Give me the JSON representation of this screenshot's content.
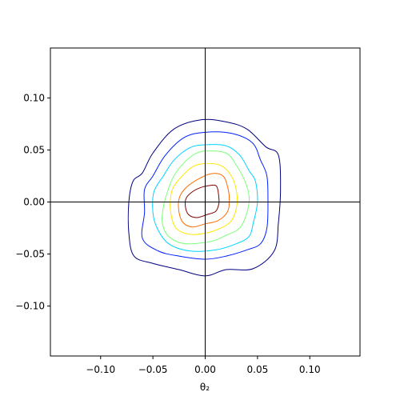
{
  "chart_data": {
    "type": "contour",
    "title": "",
    "xlabel": "θ₂",
    "ylabel": "",
    "xlim": [
      -0.148,
      0.148
    ],
    "ylim": [
      -0.148,
      0.148
    ],
    "x_ticks": [
      -0.1,
      -0.05,
      0.0,
      0.05,
      0.1
    ],
    "y_ticks": [
      -0.1,
      -0.05,
      0.0,
      0.05,
      0.1
    ],
    "x_tick_labels": [
      "−0.10",
      "−0.05",
      "0.00",
      "0.05",
      "0.10"
    ],
    "y_tick_labels": [
      "−0.10",
      "−0.05",
      "0.00",
      "0.05",
      "0.10"
    ],
    "reference_lines": {
      "x": 0,
      "y": 0
    },
    "grid": false,
    "colormap": "jet",
    "contours": [
      {
        "level": 1,
        "color": "#00007f",
        "points": [
          [
            -0.004,
            0.079
          ],
          [
            0.02,
            0.077
          ],
          [
            0.04,
            0.07
          ],
          [
            0.058,
            0.053
          ],
          [
            0.07,
            0.045
          ],
          [
            0.072,
            0.012
          ],
          [
            0.07,
            -0.02
          ],
          [
            0.066,
            -0.047
          ],
          [
            0.046,
            -0.064
          ],
          [
            0.02,
            -0.065
          ],
          [
            0.0,
            -0.071
          ],
          [
            -0.025,
            -0.065
          ],
          [
            -0.05,
            -0.059
          ],
          [
            -0.068,
            -0.052
          ],
          [
            -0.073,
            -0.03
          ],
          [
            -0.073,
            0.0
          ],
          [
            -0.069,
            0.02
          ],
          [
            -0.06,
            0.028
          ],
          [
            -0.05,
            0.047
          ],
          [
            -0.03,
            0.07
          ]
        ]
      },
      {
        "level": 2,
        "color": "#0022ff",
        "points": [
          [
            0.0,
            0.067
          ],
          [
            0.025,
            0.066
          ],
          [
            0.045,
            0.057
          ],
          [
            0.053,
            0.04
          ],
          [
            0.059,
            0.025
          ],
          [
            0.06,
            0.0
          ],
          [
            0.059,
            -0.025
          ],
          [
            0.053,
            -0.04
          ],
          [
            0.04,
            -0.046
          ],
          [
            0.02,
            -0.052
          ],
          [
            0.0,
            -0.055
          ],
          [
            -0.025,
            -0.052
          ],
          [
            -0.045,
            -0.047
          ],
          [
            -0.06,
            -0.035
          ],
          [
            -0.058,
            -0.01
          ],
          [
            -0.058,
            0.012
          ],
          [
            -0.05,
            0.025
          ],
          [
            -0.038,
            0.045
          ],
          [
            -0.02,
            0.062
          ]
        ]
      },
      {
        "level": 3,
        "color": "#00d4ff",
        "points": [
          [
            0.0,
            0.055
          ],
          [
            0.02,
            0.054
          ],
          [
            0.033,
            0.045
          ],
          [
            0.042,
            0.03
          ],
          [
            0.048,
            0.02
          ],
          [
            0.05,
            0.0
          ],
          [
            0.046,
            -0.02
          ],
          [
            0.042,
            -0.033
          ],
          [
            0.03,
            -0.04
          ],
          [
            0.01,
            -0.046
          ],
          [
            -0.015,
            -0.047
          ],
          [
            -0.035,
            -0.04
          ],
          [
            -0.046,
            -0.025
          ],
          [
            -0.05,
            -0.01
          ],
          [
            -0.049,
            0.01
          ],
          [
            -0.04,
            0.025
          ],
          [
            -0.03,
            0.04
          ],
          [
            -0.015,
            0.052
          ]
        ]
      },
      {
        "level": 4,
        "color": "#7cff79",
        "points": [
          [
            0.0,
            0.049
          ],
          [
            0.02,
            0.047
          ],
          [
            0.03,
            0.035
          ],
          [
            0.038,
            0.02
          ],
          [
            0.042,
            0.005
          ],
          [
            0.04,
            -0.01
          ],
          [
            0.033,
            -0.025
          ],
          [
            0.02,
            -0.032
          ],
          [
            0.005,
            -0.038
          ],
          [
            -0.02,
            -0.04
          ],
          [
            -0.035,
            -0.033
          ],
          [
            -0.041,
            -0.02
          ],
          [
            -0.04,
            -0.005
          ],
          [
            -0.036,
            0.01
          ],
          [
            -0.03,
            0.025
          ],
          [
            -0.02,
            0.038
          ],
          [
            -0.01,
            0.046
          ]
        ]
      },
      {
        "level": 5,
        "color": "#ffe600",
        "points": [
          [
            0.0,
            0.037
          ],
          [
            0.015,
            0.035
          ],
          [
            0.025,
            0.025
          ],
          [
            0.03,
            0.01
          ],
          [
            0.03,
            -0.005
          ],
          [
            0.025,
            -0.018
          ],
          [
            0.015,
            -0.025
          ],
          [
            0.0,
            -0.03
          ],
          [
            -0.015,
            -0.031
          ],
          [
            -0.028,
            -0.025
          ],
          [
            -0.033,
            -0.01
          ],
          [
            -0.033,
            0.005
          ],
          [
            -0.03,
            0.015
          ],
          [
            -0.022,
            0.025
          ],
          [
            -0.012,
            0.034
          ]
        ]
      },
      {
        "level": 6,
        "color": "#ff6c00",
        "points": [
          [
            0.005,
            0.027
          ],
          [
            0.017,
            0.025
          ],
          [
            0.022,
            0.012
          ],
          [
            0.023,
            0.0
          ],
          [
            0.021,
            -0.01
          ],
          [
            0.012,
            -0.018
          ],
          [
            0.0,
            -0.021
          ],
          [
            -0.012,
            -0.024
          ],
          [
            -0.021,
            -0.02
          ],
          [
            -0.025,
            -0.01
          ],
          [
            -0.025,
            0.003
          ],
          [
            -0.02,
            0.012
          ],
          [
            -0.01,
            0.02
          ]
        ]
      },
      {
        "level": 7,
        "color": "#7f0000",
        "points": [
          [
            0.005,
            0.016
          ],
          [
            0.011,
            0.015
          ],
          [
            0.013,
            0.005
          ],
          [
            0.013,
            -0.002
          ],
          [
            0.01,
            -0.009
          ],
          [
            0.002,
            -0.012
          ],
          [
            -0.008,
            -0.015
          ],
          [
            -0.016,
            -0.012
          ],
          [
            -0.019,
            -0.004
          ],
          [
            -0.018,
            0.004
          ],
          [
            -0.012,
            0.01
          ],
          [
            -0.004,
            0.014
          ]
        ]
      }
    ]
  }
}
